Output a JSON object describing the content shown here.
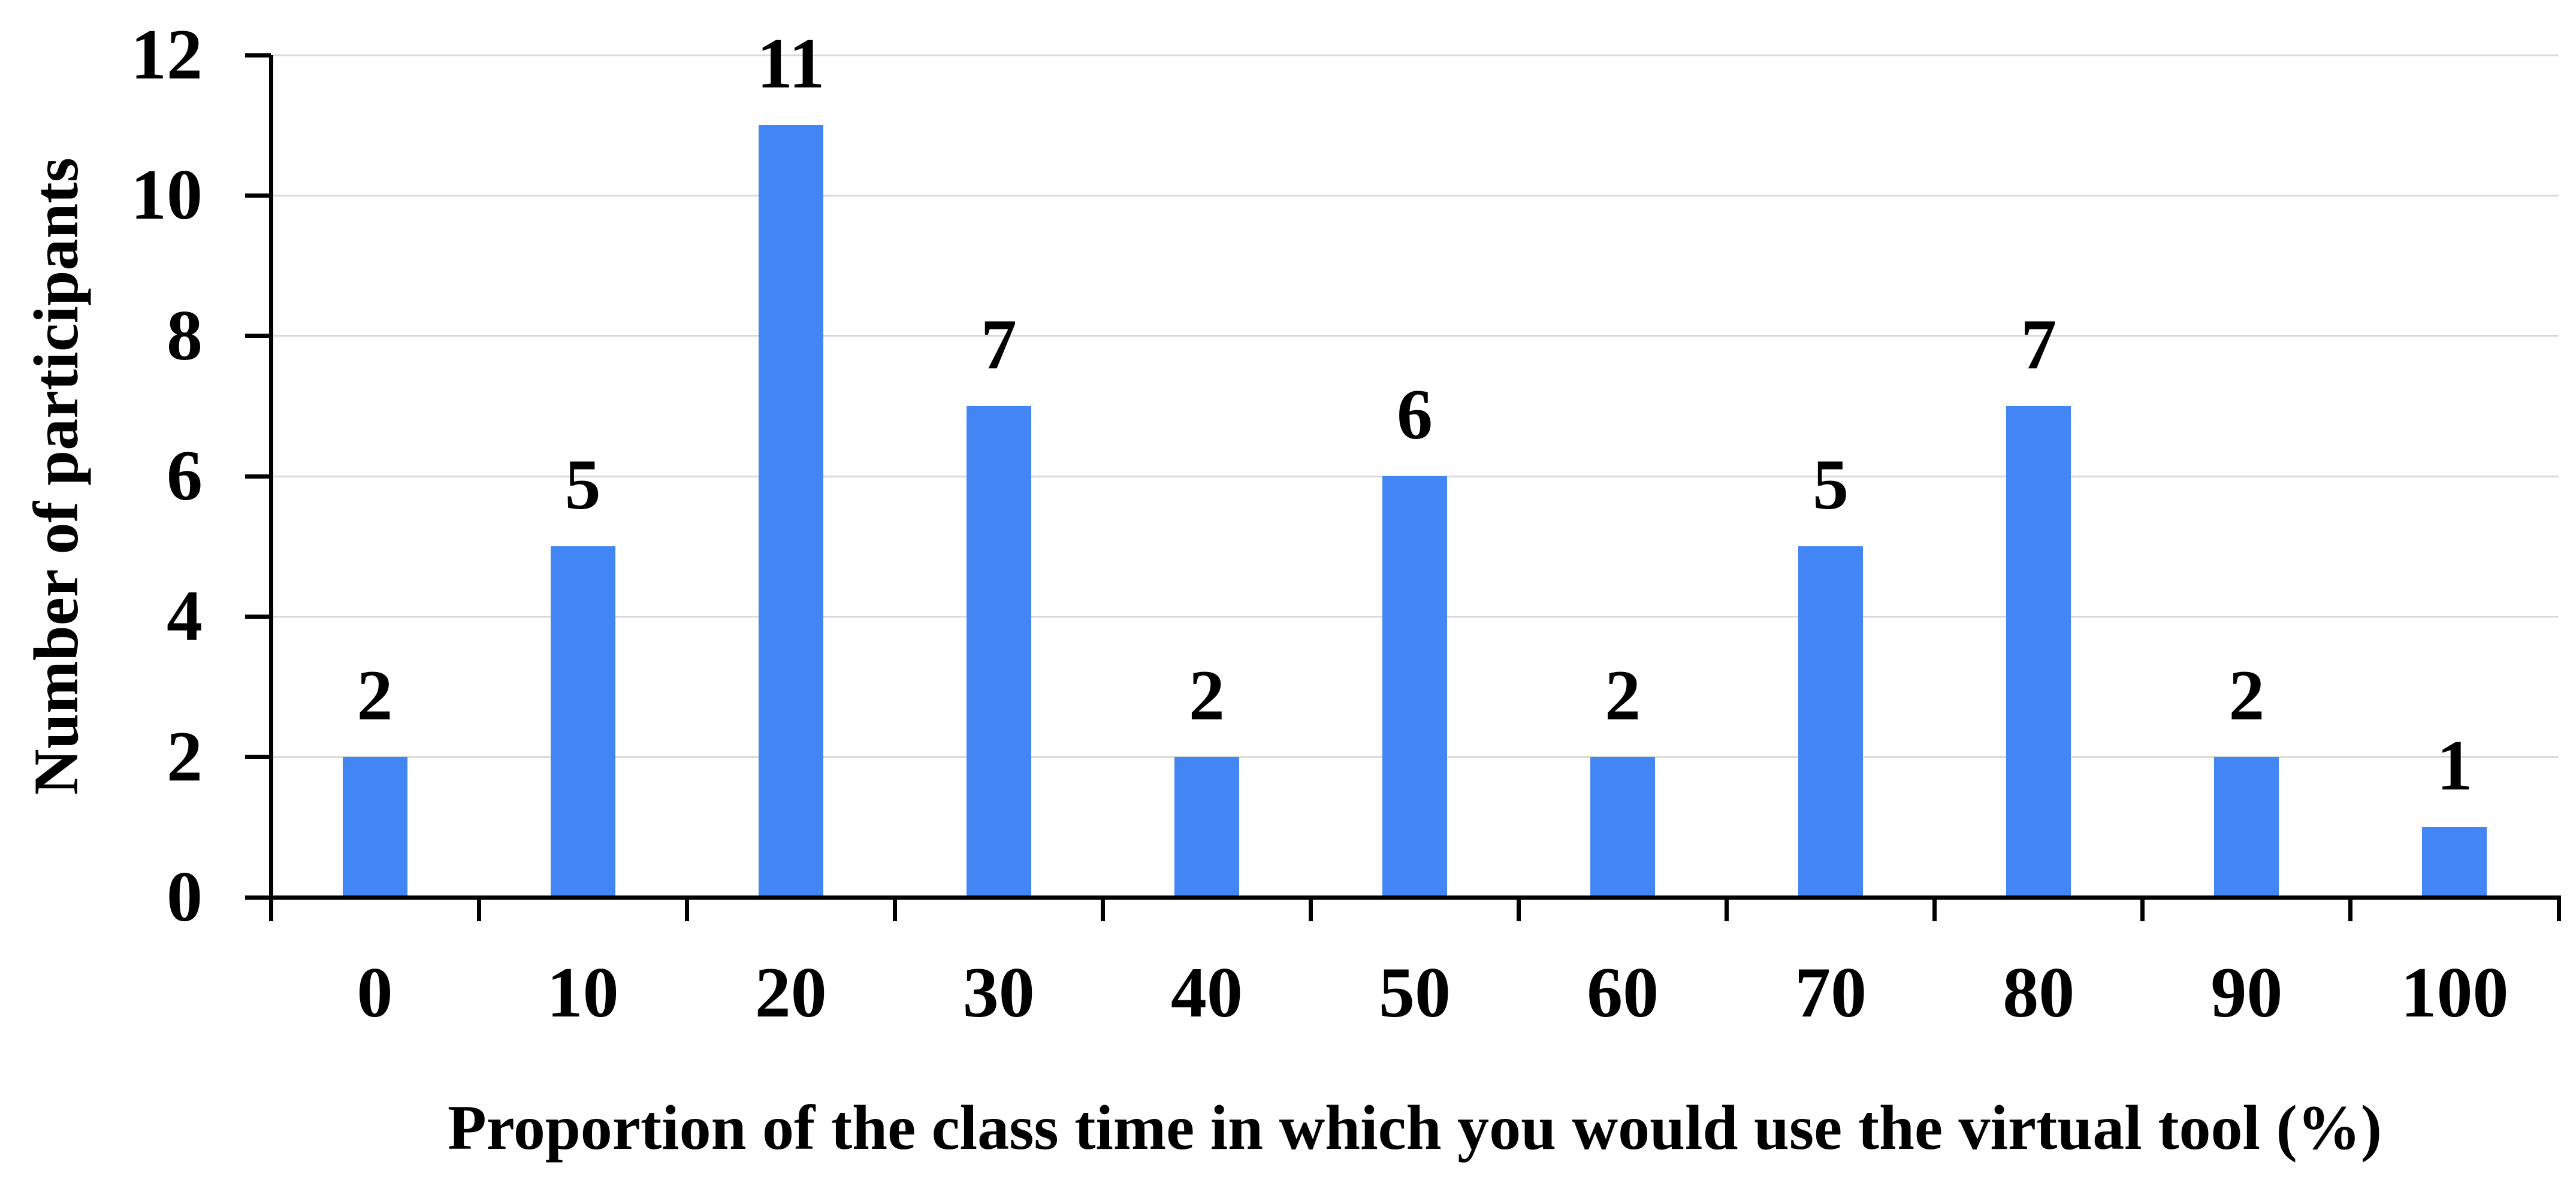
{
  "chart_data": {
    "type": "bar",
    "title": "",
    "xlabel": "Proportion of the class time in which you would use the virtual tool (%)",
    "ylabel": "Number of participants",
    "categories": [
      "0",
      "10",
      "20",
      "30",
      "40",
      "50",
      "60",
      "70",
      "80",
      "90",
      "100"
    ],
    "values": [
      2,
      5,
      11,
      7,
      2,
      6,
      2,
      5,
      7,
      2,
      1
    ],
    "series_name": "Number of participants",
    "ylim": [
      0,
      12
    ],
    "yticks": [
      0,
      2,
      4,
      6,
      8,
      10,
      12
    ],
    "grid": "horizontal",
    "legend_position": "none",
    "data_labels": true,
    "bar_color": "#4285F4",
    "gridline_color": "#D9D9D9",
    "axis_color": "#000000",
    "text_color": "#000000"
  }
}
